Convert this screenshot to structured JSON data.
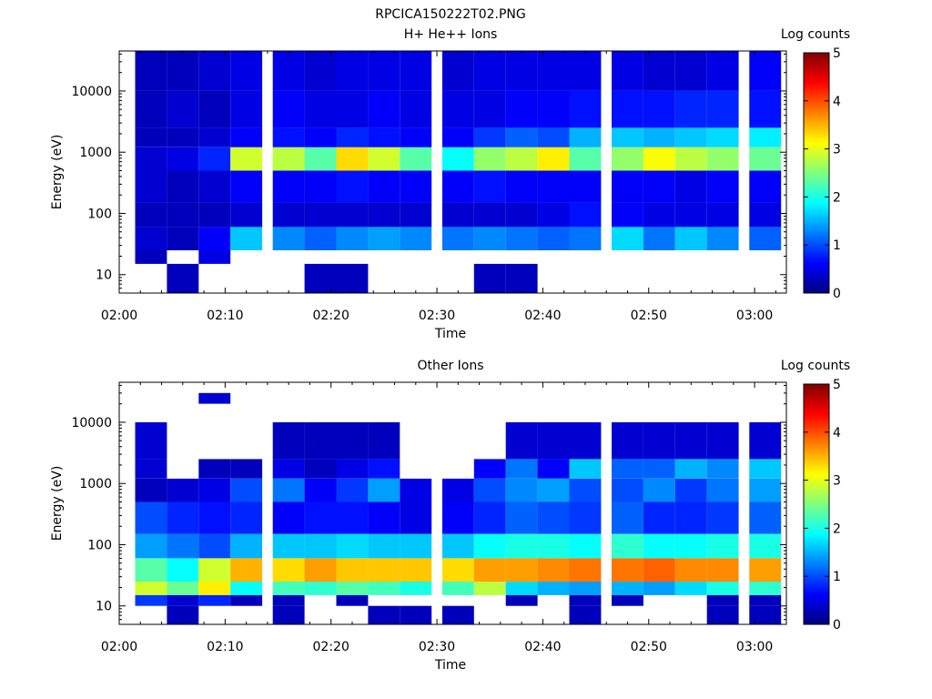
{
  "figure_title": "RPCICA150222T02.PNG",
  "colors": {
    "colormap": [
      "#00007f",
      "#0000ff",
      "#007fff",
      "#00ffff",
      "#7fff7f",
      "#ffff00",
      "#ff7f00",
      "#ff0000",
      "#7f0000"
    ],
    "background": "#ffffff",
    "axis": "#000000"
  },
  "chart_data": [
    {
      "type": "heatmap",
      "title": "H+ He++ Ions",
      "xlabel": "Time",
      "ylabel": "Energy (eV)",
      "colorbar_label": "Log counts",
      "x_ticks": [
        "02:00",
        "02:10",
        "02:20",
        "02:30",
        "02:40",
        "02:50",
        "03:00"
      ],
      "y_ticks": [
        "10",
        "100",
        "1000",
        "10000"
      ],
      "colorbar_ticks": [
        "0",
        "1",
        "2",
        "3",
        "4",
        "5"
      ],
      "yscale": "log",
      "ylim": [
        5,
        45000
      ],
      "xlim": [
        "02:00",
        "03:03"
      ],
      "clim": [
        0,
        5
      ],
      "grid": false,
      "time_bins": [
        "02:03",
        "02:06",
        "02:09",
        "02:12",
        "02:16",
        "02:19",
        "02:22",
        "02:25",
        "02:28",
        "02:32",
        "02:35",
        "02:38",
        "02:41",
        "02:44",
        "02:48",
        "02:51",
        "02:54",
        "02:57",
        "03:01"
      ],
      "bands": [
        {
          "range": [
            10000,
            45000
          ],
          "level": [
            0.3,
            0.3,
            0.4,
            0.5,
            0.5,
            0.4,
            0.5,
            0.5,
            0.5,
            0.4,
            0.5,
            0.5,
            0.5,
            0.5,
            0.5,
            0.4,
            0.4,
            0.5,
            0.6
          ]
        },
        {
          "range": [
            2500,
            10000
          ],
          "level": [
            0.3,
            0.4,
            0.3,
            0.5,
            0.6,
            0.5,
            0.5,
            0.6,
            0.5,
            0.5,
            0.5,
            0.6,
            0.6,
            0.7,
            0.7,
            0.7,
            0.8,
            0.8,
            0.7
          ]
        },
        {
          "range": [
            1200,
            2500
          ],
          "level": [
            0.3,
            0.3,
            0.4,
            0.6,
            0.7,
            0.6,
            0.8,
            0.7,
            0.6,
            0.6,
            0.9,
            1.1,
            1.0,
            1.5,
            1.6,
            1.5,
            1.6,
            1.7,
            1.8
          ]
        },
        {
          "range": [
            500,
            1200
          ],
          "level": [
            0.4,
            0.5,
            0.8,
            2.9,
            2.8,
            2.3,
            3.3,
            2.9,
            2.3,
            1.9,
            2.6,
            2.8,
            3.2,
            2.3,
            2.6,
            3.1,
            2.8,
            2.6,
            2.4
          ]
        },
        {
          "range": [
            150,
            500
          ],
          "level": [
            0.4,
            0.3,
            0.4,
            0.6,
            0.6,
            0.6,
            0.7,
            0.6,
            0.6,
            0.6,
            0.7,
            0.6,
            0.6,
            0.6,
            0.6,
            0.6,
            0.5,
            0.6,
            0.6
          ]
        },
        {
          "range": [
            60,
            150
          ],
          "level": [
            0.3,
            0.3,
            0.3,
            0.4,
            0.4,
            0.4,
            0.4,
            0.4,
            0.4,
            0.4,
            0.4,
            0.4,
            0.5,
            0.7,
            0.6,
            0.5,
            0.5,
            0.5,
            0.5
          ]
        },
        {
          "range": [
            25,
            60
          ],
          "level": [
            0.4,
            0.3,
            0.6,
            1.6,
            1.3,
            1.1,
            1.3,
            1.4,
            1.3,
            1.2,
            1.3,
            1.2,
            1.1,
            1.2,
            1.7,
            1.2,
            1.6,
            1.3,
            1.1
          ]
        },
        {
          "range": [
            15,
            25
          ],
          "level": [
            0.3,
            0,
            0.5,
            0,
            0,
            0,
            0,
            0,
            0,
            0,
            0,
            0,
            0,
            0,
            0,
            0,
            0,
            0,
            0
          ]
        },
        {
          "range": [
            5,
            15
          ],
          "level": [
            0,
            0.3,
            0,
            0,
            0,
            0.3,
            0.3,
            0,
            0,
            0,
            0.3,
            0.3,
            0,
            0,
            0,
            0,
            0,
            0,
            0
          ]
        }
      ]
    },
    {
      "type": "heatmap",
      "title": "Other Ions",
      "xlabel": "Time",
      "ylabel": "Energy (eV)",
      "colorbar_label": "Log counts",
      "x_ticks": [
        "02:00",
        "02:10",
        "02:20",
        "02:30",
        "02:40",
        "02:50",
        "03:00"
      ],
      "y_ticks": [
        "10",
        "100",
        "1000",
        "10000"
      ],
      "colorbar_ticks": [
        "0",
        "1",
        "2",
        "3",
        "4",
        "5"
      ],
      "yscale": "log",
      "ylim": [
        5,
        45000
      ],
      "xlim": [
        "02:00",
        "03:03"
      ],
      "clim": [
        0,
        5
      ],
      "grid": false,
      "time_bins": [
        "02:03",
        "02:06",
        "02:09",
        "02:12",
        "02:16",
        "02:19",
        "02:22",
        "02:25",
        "02:28",
        "02:32",
        "02:35",
        "02:38",
        "02:41",
        "02:44",
        "02:48",
        "02:51",
        "02:54",
        "02:57",
        "03:01"
      ],
      "bands": [
        {
          "range": [
            20000,
            30000
          ],
          "level": [
            0,
            0,
            0.4,
            0,
            0,
            0,
            0,
            0,
            0,
            0,
            0,
            0,
            0,
            0,
            0,
            0,
            0,
            0,
            0
          ]
        },
        {
          "range": [
            2500,
            10000
          ],
          "level": [
            0.4,
            0,
            0,
            0,
            0.3,
            0.3,
            0.3,
            0.3,
            0,
            0,
            0,
            0.4,
            0.4,
            0.4,
            0.4,
            0.4,
            0.4,
            0.4,
            0.4
          ]
        },
        {
          "range": [
            1200,
            2500
          ],
          "level": [
            0.4,
            0,
            0.3,
            0.3,
            0.5,
            0.3,
            0.5,
            0.7,
            0,
            0,
            0.6,
            1.2,
            0.6,
            1.6,
            1.1,
            1.1,
            1.5,
            1.3,
            1.6
          ]
        },
        {
          "range": [
            500,
            1200
          ],
          "level": [
            0.3,
            0.4,
            0.5,
            1.0,
            1.2,
            0.6,
            0.9,
            1.4,
            0.5,
            0.5,
            1.0,
            1.3,
            1.4,
            1.0,
            1.0,
            1.3,
            0.9,
            1.2,
            1.4
          ]
        },
        {
          "range": [
            150,
            500
          ],
          "level": [
            1.0,
            0.8,
            0.7,
            0.8,
            0.6,
            0.7,
            0.7,
            0.6,
            0.5,
            0.6,
            0.8,
            1.1,
            1.0,
            0.9,
            1.1,
            0.8,
            0.8,
            0.9,
            1.1
          ]
        },
        {
          "range": [
            60,
            150
          ],
          "level": [
            1.4,
            1.2,
            1.0,
            1.5,
            1.6,
            1.6,
            1.7,
            1.6,
            1.6,
            1.6,
            1.9,
            2.0,
            2.0,
            1.9,
            2.1,
            1.9,
            1.9,
            2.0,
            2.0
          ]
        },
        {
          "range": [
            25,
            60
          ],
          "level": [
            2.3,
            1.9,
            2.9,
            3.5,
            3.3,
            3.6,
            3.4,
            3.4,
            3.4,
            3.3,
            3.6,
            3.6,
            3.7,
            3.8,
            3.8,
            3.9,
            3.7,
            3.7,
            3.6
          ]
        },
        {
          "range": [
            15,
            25
          ],
          "level": [
            2.9,
            2.4,
            3.2,
            1.9,
            2.2,
            2.1,
            2.3,
            2.2,
            2.0,
            2.2,
            2.8,
            1.7,
            1.5,
            1.4,
            1.5,
            1.4,
            1.7,
            2.0,
            2.1
          ]
        },
        {
          "range": [
            10,
            15
          ],
          "level": [
            0.9,
            0.4,
            0.8,
            0.3,
            0.3,
            0,
            0.3,
            0,
            0,
            0,
            0,
            0.3,
            0,
            0.3,
            0.3,
            0,
            0,
            0.3,
            0.3
          ]
        },
        {
          "range": [
            5,
            10
          ],
          "level": [
            0,
            0.3,
            0,
            0,
            0.3,
            0,
            0,
            0.3,
            0.3,
            0.3,
            0,
            0,
            0,
            0.3,
            0,
            0,
            0,
            0.3,
            0.3
          ]
        }
      ]
    }
  ]
}
